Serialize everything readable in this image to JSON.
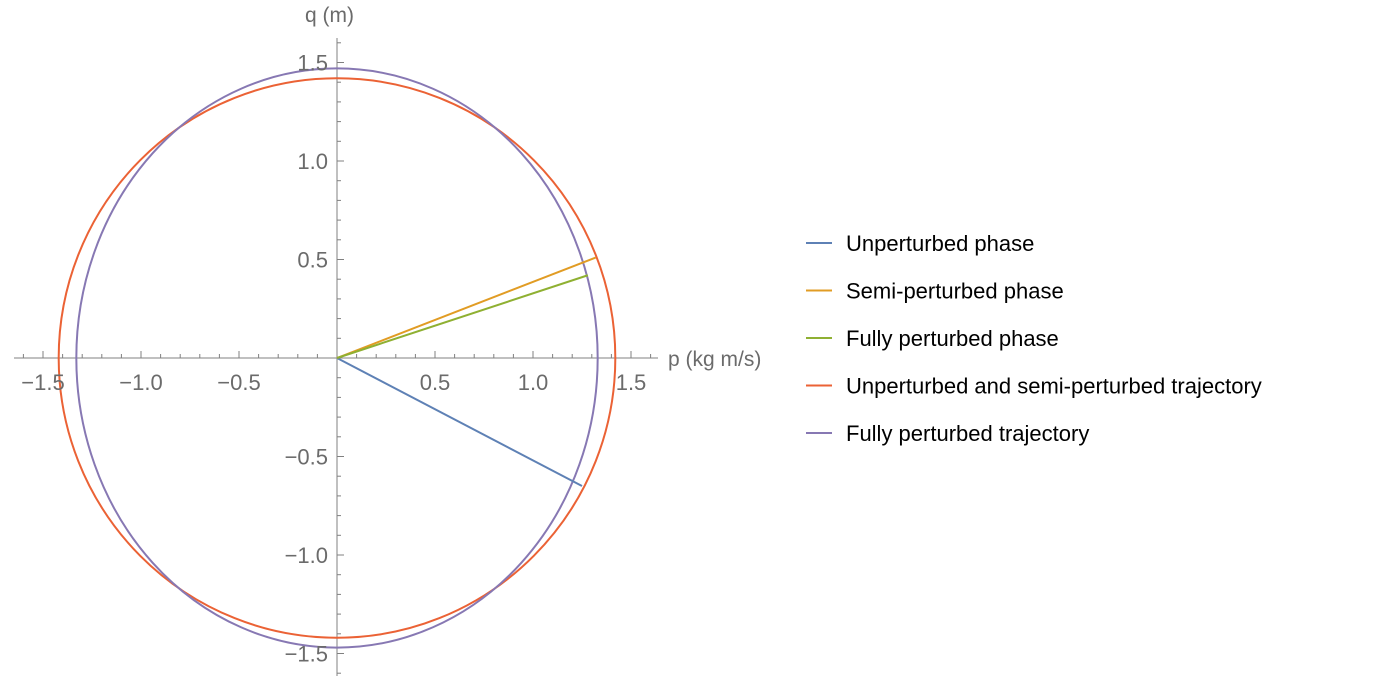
{
  "chart_data": {
    "type": "line",
    "xlabel": "p (kg m/s)",
    "ylabel": "q (m)",
    "xlim": [
      -1.6,
      1.6
    ],
    "ylim": [
      -1.6,
      1.6
    ],
    "x_ticks": [
      -1.5,
      -1.0,
      -0.5,
      0.5,
      1.0,
      1.5
    ],
    "x_tick_labels": [
      "−1.5",
      "−1.0",
      "−0.5",
      "0.5",
      "1.0",
      "1.5"
    ],
    "y_ticks": [
      1.5,
      1.0,
      0.5,
      -0.5,
      -1.0,
      -1.5
    ],
    "y_tick_labels": [
      "1.5",
      "1.0",
      "0.5",
      "−0.5",
      "−1.0",
      "−1.5"
    ],
    "grid": false,
    "legend_position": "right",
    "series": [
      {
        "name": "Unperturbed phase",
        "color": "#5e81b5",
        "kind": "segment",
        "points": [
          [
            0,
            0
          ],
          [
            1.25,
            -0.65
          ]
        ]
      },
      {
        "name": "Semi-perturbed phase",
        "color": "#e19c24",
        "kind": "segment",
        "points": [
          [
            0,
            0
          ],
          [
            1.32,
            0.51
          ]
        ]
      },
      {
        "name": "Fully perturbed phase",
        "color": "#8fb032",
        "kind": "segment",
        "points": [
          [
            0,
            0
          ],
          [
            1.28,
            0.42
          ]
        ]
      },
      {
        "name": "Unperturbed and semi-perturbed trajectory",
        "color": "#eb6235",
        "kind": "ellipse",
        "rx": 1.42,
        "ry": 1.42
      },
      {
        "name": "Fully perturbed trajectory",
        "color": "#8778b3",
        "kind": "ellipse",
        "rx": 1.33,
        "ry": 1.47
      }
    ]
  }
}
